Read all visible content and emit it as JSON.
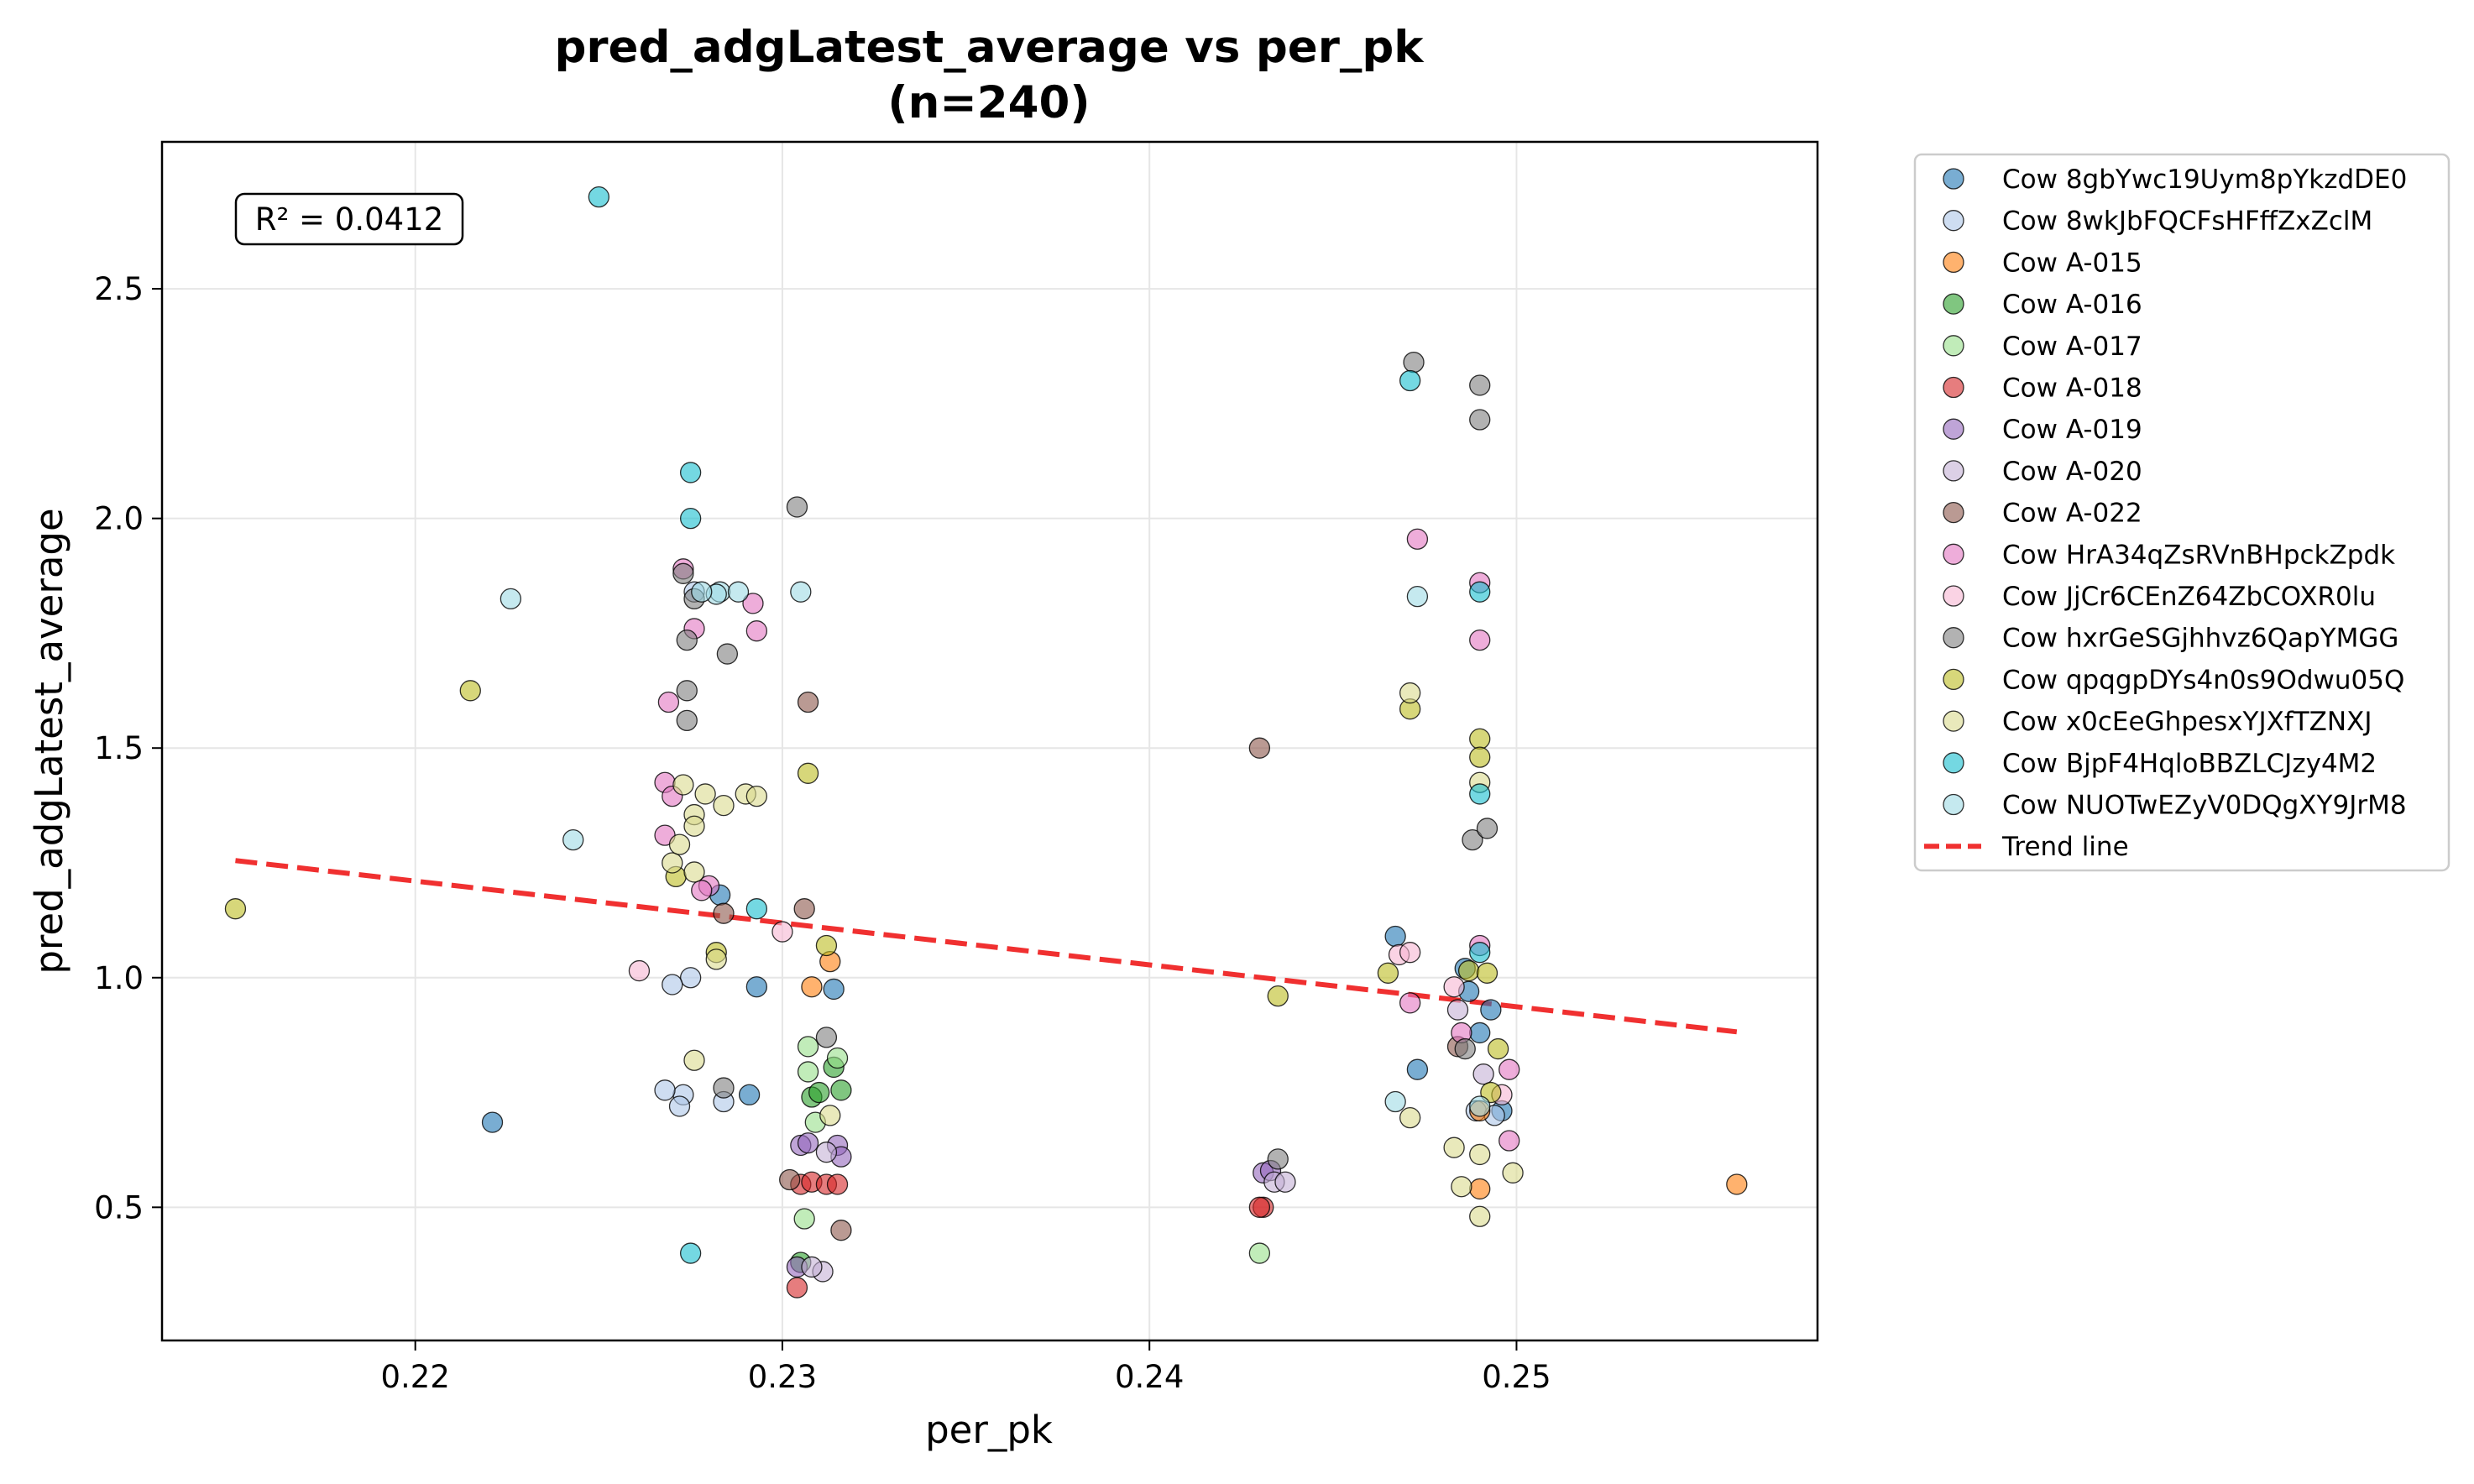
{
  "chart_data": {
    "type": "scatter",
    "title": "pred_adgLatest_average vs per_pk",
    "subtitle": "(n=240)",
    "xlabel": "per_pk",
    "ylabel": "pred_adgLatest_average",
    "xlim": [
      0.2131,
      0.2582
    ],
    "ylim": [
      0.21,
      2.82
    ],
    "xticks": [
      0.22,
      0.23,
      0.24,
      0.25
    ],
    "xtick_labels": [
      "0.22",
      "0.23",
      "0.24",
      "0.25"
    ],
    "yticks": [
      0.5,
      1.0,
      1.5,
      2.0,
      2.5
    ],
    "ytick_labels": [
      "0.5",
      "1.0",
      "1.5",
      "2.0",
      "2.5"
    ],
    "grid": true,
    "legend_position": "outside-right",
    "annotation": "R² = 0.0412",
    "trend_line": {
      "name": "Trend line",
      "color": "#f03030",
      "x": [
        0.2151,
        0.256
      ],
      "y": [
        1.255,
        0.882
      ]
    },
    "series": [
      {
        "name": "Cow 8gbYwc19Uym8pYkzdDE0",
        "color": "#1f77b4",
        "points": [
          [
            0.2221,
            0.685
          ],
          [
            0.2293,
            0.98
          ],
          [
            0.2314,
            0.975
          ],
          [
            0.2291,
            0.745
          ],
          [
            0.2283,
            1.18
          ],
          [
            0.2467,
            1.09
          ],
          [
            0.2473,
            0.8
          ],
          [
            0.2486,
            1.02
          ],
          [
            0.2493,
            0.93
          ],
          [
            0.249,
            0.88
          ],
          [
            0.2496,
            0.71
          ],
          [
            0.2487,
            0.97
          ]
        ]
      },
      {
        "name": "Cow 8wkJbFQCFsHFffZxZclM",
        "color": "#aec7e8",
        "points": [
          [
            0.2273,
            0.745
          ],
          [
            0.2268,
            0.755
          ],
          [
            0.2272,
            0.72
          ],
          [
            0.2284,
            0.73
          ],
          [
            0.2275,
            1.0
          ],
          [
            0.227,
            0.985
          ],
          [
            0.2276,
            1.84
          ],
          [
            0.2489,
            0.71
          ],
          [
            0.2494,
            0.7
          ]
        ]
      },
      {
        "name": "Cow A-015",
        "color": "#ff7f0e",
        "points": [
          [
            0.2313,
            1.035
          ],
          [
            0.2308,
            0.98
          ],
          [
            0.256,
            0.55
          ],
          [
            0.249,
            0.54
          ],
          [
            0.249,
            0.71
          ]
        ]
      },
      {
        "name": "Cow A-016",
        "color": "#2ca02c",
        "points": [
          [
            0.2308,
            0.74
          ],
          [
            0.2314,
            0.805
          ],
          [
            0.2316,
            0.755
          ],
          [
            0.2305,
            0.38
          ],
          [
            0.231,
            0.75
          ]
        ]
      },
      {
        "name": "Cow A-017",
        "color": "#98df8a",
        "points": [
          [
            0.2307,
            0.85
          ],
          [
            0.2315,
            0.825
          ],
          [
            0.2307,
            0.795
          ],
          [
            0.2309,
            0.685
          ],
          [
            0.2306,
            0.475
          ],
          [
            0.243,
            0.4
          ]
        ]
      },
      {
        "name": "Cow A-018",
        "color": "#d62728",
        "points": [
          [
            0.2305,
            0.55
          ],
          [
            0.2308,
            0.555
          ],
          [
            0.2312,
            0.55
          ],
          [
            0.2304,
            0.325
          ],
          [
            0.2315,
            0.55
          ],
          [
            0.2431,
            0.5
          ],
          [
            0.243,
            0.5
          ]
        ]
      },
      {
        "name": "Cow A-019",
        "color": "#9467bd",
        "points": [
          [
            0.2305,
            0.635
          ],
          [
            0.2307,
            0.64
          ],
          [
            0.2315,
            0.635
          ],
          [
            0.2316,
            0.61
          ],
          [
            0.2304,
            0.37
          ],
          [
            0.2431,
            0.575
          ],
          [
            0.2433,
            0.58
          ]
        ]
      },
      {
        "name": "Cow A-020",
        "color": "#c5b0d5",
        "points": [
          [
            0.2311,
            0.36
          ],
          [
            0.2308,
            0.37
          ],
          [
            0.2312,
            0.62
          ],
          [
            0.2434,
            0.555
          ],
          [
            0.2437,
            0.555
          ],
          [
            0.2484,
            0.93
          ],
          [
            0.2491,
            0.79
          ]
        ]
      },
      {
        "name": "Cow A-022",
        "color": "#8c564b",
        "points": [
          [
            0.2302,
            0.56
          ],
          [
            0.2316,
            0.45
          ],
          [
            0.2306,
            1.15
          ],
          [
            0.2307,
            1.6
          ],
          [
            0.243,
            1.5
          ],
          [
            0.2284,
            1.14
          ],
          [
            0.2484,
            0.85
          ]
        ]
      },
      {
        "name": "Cow HrA34qZsRVnBHpckZpdk",
        "color": "#e377c2",
        "points": [
          [
            0.2268,
            1.425
          ],
          [
            0.227,
            1.395
          ],
          [
            0.2268,
            1.31
          ],
          [
            0.2273,
            1.89
          ],
          [
            0.2269,
            1.6
          ],
          [
            0.2276,
            1.76
          ],
          [
            0.2292,
            1.815
          ],
          [
            0.2293,
            1.755
          ],
          [
            0.228,
            1.2
          ],
          [
            0.2278,
            1.19
          ],
          [
            0.2473,
            1.955
          ],
          [
            0.249,
            1.86
          ],
          [
            0.249,
            1.735
          ],
          [
            0.2471,
            0.945
          ],
          [
            0.2498,
            0.8
          ],
          [
            0.2498,
            0.645
          ],
          [
            0.249,
            1.07
          ],
          [
            0.2485,
            0.88
          ]
        ]
      },
      {
        "name": "Cow JjCr6CEnZ64ZbCOXR0lu",
        "color": "#f7b6d2",
        "points": [
          [
            0.2261,
            1.015
          ],
          [
            0.23,
            1.1
          ],
          [
            0.2468,
            1.05
          ],
          [
            0.2471,
            1.055
          ],
          [
            0.2483,
            0.98
          ],
          [
            0.2496,
            0.745
          ]
        ]
      },
      {
        "name": "Cow hxrGeSGjhhvz6QapYMGG",
        "color": "#7f7f7f",
        "points": [
          [
            0.2273,
            1.88
          ],
          [
            0.2276,
            1.825
          ],
          [
            0.2274,
            1.735
          ],
          [
            0.2285,
            1.705
          ],
          [
            0.2274,
            1.625
          ],
          [
            0.2274,
            1.56
          ],
          [
            0.2304,
            2.025
          ],
          [
            0.2312,
            0.87
          ],
          [
            0.2284,
            0.76
          ],
          [
            0.2435,
            0.605
          ],
          [
            0.2472,
            2.34
          ],
          [
            0.249,
            2.29
          ],
          [
            0.249,
            2.215
          ],
          [
            0.2488,
            1.3
          ],
          [
            0.2492,
            1.325
          ],
          [
            0.2486,
            0.845
          ]
        ]
      },
      {
        "name": "Cow qpqgpDYs4n0s9Odwu05Q",
        "color": "#bcbd22",
        "points": [
          [
            0.2151,
            1.15
          ],
          [
            0.2215,
            1.625
          ],
          [
            0.2307,
            1.445
          ],
          [
            0.2271,
            1.22
          ],
          [
            0.2282,
            1.055
          ],
          [
            0.2312,
            1.07
          ],
          [
            0.2435,
            0.96
          ],
          [
            0.2465,
            1.01
          ],
          [
            0.2471,
            1.585
          ],
          [
            0.249,
            1.52
          ],
          [
            0.249,
            1.48
          ],
          [
            0.2487,
            1.015
          ],
          [
            0.2493,
            0.75
          ],
          [
            0.2492,
            1.01
          ],
          [
            0.2495,
            0.845
          ]
        ]
      },
      {
        "name": "Cow x0cEeGhpesxYJXfTZNXJ",
        "color": "#dbdb8d",
        "points": [
          [
            0.2273,
            1.42
          ],
          [
            0.2279,
            1.4
          ],
          [
            0.2284,
            1.375
          ],
          [
            0.229,
            1.4
          ],
          [
            0.2293,
            1.395
          ],
          [
            0.2276,
            1.355
          ],
          [
            0.2276,
            1.33
          ],
          [
            0.227,
            1.25
          ],
          [
            0.2272,
            1.29
          ],
          [
            0.2276,
            1.23
          ],
          [
            0.2276,
            0.82
          ],
          [
            0.2282,
            1.04
          ],
          [
            0.2313,
            0.7
          ],
          [
            0.2471,
            1.62
          ],
          [
            0.2483,
            0.63
          ],
          [
            0.249,
            0.48
          ],
          [
            0.2499,
            0.575
          ],
          [
            0.2471,
            0.695
          ],
          [
            0.249,
            1.425
          ],
          [
            0.2485,
            0.545
          ],
          [
            0.249,
            0.615
          ]
        ]
      },
      {
        "name": "Cow BjpF4HqloBBZLCJzy4M2",
        "color": "#17becf",
        "points": [
          [
            0.225,
            2.7
          ],
          [
            0.2275,
            2.1
          ],
          [
            0.2275,
            2.0
          ],
          [
            0.2293,
            1.15
          ],
          [
            0.2275,
            0.4
          ],
          [
            0.2471,
            2.3
          ],
          [
            0.249,
            1.84
          ],
          [
            0.249,
            1.4
          ],
          [
            0.249,
            1.055
          ]
        ]
      },
      {
        "name": "Cow NUOTwEZyV0DQgXY9JrM8",
        "color": "#9edae5",
        "points": [
          [
            0.2226,
            1.825
          ],
          [
            0.2243,
            1.3
          ],
          [
            0.2283,
            1.84
          ],
          [
            0.2288,
            1.84
          ],
          [
            0.2305,
            1.84
          ],
          [
            0.2282,
            1.835
          ],
          [
            0.2278,
            1.84
          ],
          [
            0.2473,
            1.83
          ],
          [
            0.2467,
            0.73
          ],
          [
            0.249,
            0.72
          ]
        ]
      }
    ]
  }
}
